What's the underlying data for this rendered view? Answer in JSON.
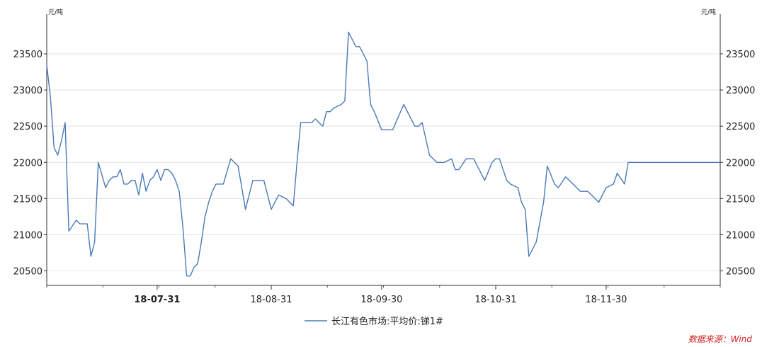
{
  "chart_data": {
    "type": "line",
    "left_unit": "元/吨",
    "right_unit": "元/吨",
    "ylim": [
      20300,
      23950
    ],
    "y_ticks": [
      20500,
      21000,
      21500,
      22000,
      22500,
      23000,
      23500
    ],
    "xlim": [
      "2018-07-01",
      "2018-12-31"
    ],
    "x_ticks": [
      {
        "label": "18-07-31",
        "date": "2018-07-31",
        "bold": true
      },
      {
        "label": "18-08-31",
        "date": "2018-08-31",
        "bold": false
      },
      {
        "label": "18-09-30",
        "date": "2018-09-30",
        "bold": false
      },
      {
        "label": "18-10-31",
        "date": "2018-10-31",
        "bold": false
      },
      {
        "label": "18-11-30",
        "date": "2018-11-30",
        "bold": false
      }
    ],
    "grid": true,
    "legend_position": "bottom-center",
    "series": [
      {
        "name": "长江有色市场:平均价:锑1#",
        "color": "#4a7ab8",
        "x": [
          "2018-07-01",
          "2018-07-02",
          "2018-07-03",
          "2018-07-04",
          "2018-07-05",
          "2018-07-06",
          "2018-07-07",
          "2018-07-09",
          "2018-07-10",
          "2018-07-11",
          "2018-07-12",
          "2018-07-13",
          "2018-07-14",
          "2018-07-15",
          "2018-07-17",
          "2018-07-18",
          "2018-07-19",
          "2018-07-20",
          "2018-07-21",
          "2018-07-22",
          "2018-07-23",
          "2018-07-24",
          "2018-07-25",
          "2018-07-26",
          "2018-07-27",
          "2018-07-28",
          "2018-07-29",
          "2018-07-30",
          "2018-07-31",
          "2018-08-01",
          "2018-08-02",
          "2018-08-03",
          "2018-08-04",
          "2018-08-05",
          "2018-08-06",
          "2018-08-07",
          "2018-08-08",
          "2018-08-09",
          "2018-08-10",
          "2018-08-11",
          "2018-08-12",
          "2018-08-13",
          "2018-08-14",
          "2018-08-15",
          "2018-08-16",
          "2018-08-18",
          "2018-08-20",
          "2018-08-21",
          "2018-08-22",
          "2018-08-24",
          "2018-08-26",
          "2018-08-28",
          "2018-08-29",
          "2018-08-31",
          "2018-09-02",
          "2018-09-04",
          "2018-09-05",
          "2018-09-06",
          "2018-09-07",
          "2018-09-08",
          "2018-09-10",
          "2018-09-11",
          "2018-09-12",
          "2018-09-14",
          "2018-09-15",
          "2018-09-16",
          "2018-09-17",
          "2018-09-19",
          "2018-09-20",
          "2018-09-21",
          "2018-09-23",
          "2018-09-24",
          "2018-09-26",
          "2018-09-27",
          "2018-09-28",
          "2018-09-30",
          "2018-10-03",
          "2018-10-06",
          "2018-10-09",
          "2018-10-10",
          "2018-10-11",
          "2018-10-13",
          "2018-10-14",
          "2018-10-15",
          "2018-10-17",
          "2018-10-19",
          "2018-10-20",
          "2018-10-21",
          "2018-10-23",
          "2018-10-25",
          "2018-10-27",
          "2018-10-28",
          "2018-10-30",
          "2018-10-31",
          "2018-11-01",
          "2018-11-03",
          "2018-11-04",
          "2018-11-06",
          "2018-11-07",
          "2018-11-08",
          "2018-11-09",
          "2018-11-11",
          "2018-11-13",
          "2018-11-14",
          "2018-11-16",
          "2018-11-17",
          "2018-11-19",
          "2018-11-20",
          "2018-11-22",
          "2018-11-23",
          "2018-11-25",
          "2018-11-27",
          "2018-11-28",
          "2018-11-30",
          "2018-12-02",
          "2018-12-03",
          "2018-12-05",
          "2018-12-06",
          "2018-12-08",
          "2018-12-10",
          "2018-12-11",
          "2018-12-12",
          "2018-12-14",
          "2018-12-16",
          "2018-12-18",
          "2018-12-20",
          "2018-12-21",
          "2018-12-23",
          "2018-12-24",
          "2018-12-26",
          "2018-12-27",
          "2018-12-29",
          "2018-12-31"
        ],
        "values": [
          23350,
          22900,
          22200,
          22100,
          22300,
          22550,
          21050,
          21200,
          21150,
          21150,
          21150,
          20700,
          20900,
          22000,
          21650,
          21750,
          21800,
          21800,
          21900,
          21700,
          21700,
          21750,
          21750,
          21550,
          21850,
          21600,
          21750,
          21800,
          21900,
          21750,
          21900,
          21900,
          21850,
          21750,
          21600,
          21100,
          20430,
          20430,
          20550,
          20600,
          20900,
          21250,
          21450,
          21600,
          21700,
          21700,
          22050,
          22000,
          21950,
          21350,
          21750,
          21750,
          21750,
          21350,
          21550,
          21500,
          21450,
          21400,
          22000,
          22550,
          22550,
          22550,
          22600,
          22500,
          22700,
          22700,
          22750,
          22800,
          22850,
          23800,
          23600,
          23600,
          23400,
          22800,
          22700,
          22450,
          22450,
          22800,
          22500,
          22500,
          22550,
          22100,
          22050,
          22000,
          22000,
          22050,
          21900,
          21900,
          22050,
          22050,
          21850,
          21750,
          22000,
          22050,
          22050,
          21750,
          21700,
          21650,
          21450,
          21350,
          20700,
          20900,
          21450,
          21950,
          21700,
          21650,
          21800,
          21750,
          21650,
          21600,
          21600,
          21500,
          21450,
          21650,
          21700,
          21850,
          21700,
          22000,
          22000,
          22000,
          22000,
          22000,
          22000,
          22000,
          22000,
          22000,
          22000,
          22000,
          22000,
          22000,
          22000,
          22000,
          22000
        ]
      }
    ]
  },
  "source": "数据来源：Wind"
}
